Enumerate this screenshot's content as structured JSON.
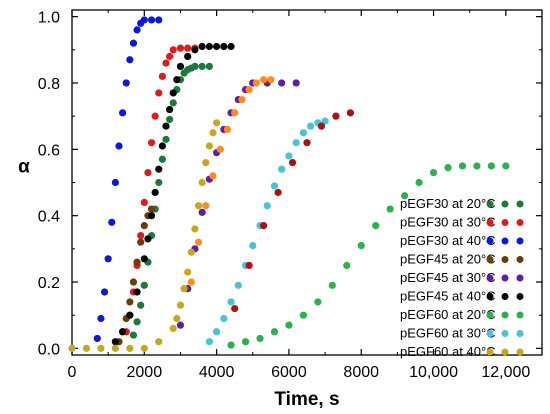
{
  "chart_data": {
    "type": "scatter",
    "xlabel": "Time, s",
    "ylabel": "α",
    "xlim": [
      0,
      13000
    ],
    "ylim": [
      -0.02,
      1.02
    ],
    "x_ticks": [
      0,
      2000,
      4000,
      6000,
      8000,
      10000,
      12000
    ],
    "x_tick_labels": [
      "0",
      "2000",
      "4000",
      "6000",
      "8000",
      "10,000",
      "12,000"
    ],
    "y_ticks": [
      0.0,
      0.2,
      0.4,
      0.6,
      0.8,
      1.0
    ],
    "y_tick_labels": [
      "0.0",
      "0.2",
      "0.4",
      "0.6",
      "0.8",
      "1.0"
    ],
    "grid": false,
    "legend_position": "bottom-right",
    "series": [
      {
        "name": "pEGF30 at 20°C",
        "color": "#1a7a3c",
        "x": [
          1700,
          1800,
          1900,
          2000,
          2100,
          2200,
          2300,
          2400,
          2500,
          2600,
          2700,
          2800,
          2900,
          3000,
          3100,
          3200,
          3300,
          3400,
          3600,
          3800
        ],
        "y": [
          0.04,
          0.08,
          0.13,
          0.19,
          0.26,
          0.34,
          0.42,
          0.5,
          0.57,
          0.63,
          0.69,
          0.74,
          0.78,
          0.81,
          0.83,
          0.84,
          0.845,
          0.85,
          0.85,
          0.85
        ]
      },
      {
        "name": "pEGF30 at 30°C",
        "color": "#e31a1c",
        "x": [
          1500,
          1600,
          1700,
          1800,
          1900,
          2000,
          2100,
          2200,
          2300,
          2400,
          2500,
          2600,
          2700,
          2800,
          3000,
          3200,
          3400
        ],
        "y": [
          0.05,
          0.1,
          0.17,
          0.25,
          0.34,
          0.44,
          0.53,
          0.62,
          0.7,
          0.77,
          0.82,
          0.86,
          0.88,
          0.9,
          0.905,
          0.905,
          0.905
        ]
      },
      {
        "name": "pEGF30 at 40°C",
        "color": "#0a18e0",
        "x": [
          700,
          800,
          900,
          1000,
          1100,
          1200,
          1300,
          1400,
          1500,
          1600,
          1700,
          1800,
          1900,
          2000,
          2200,
          2400
        ],
        "y": [
          0.03,
          0.09,
          0.17,
          0.27,
          0.38,
          0.5,
          0.61,
          0.71,
          0.8,
          0.87,
          0.92,
          0.96,
          0.98,
          0.99,
          0.99,
          0.99
        ]
      },
      {
        "name": "pEGF45 at 20°C",
        "color": "#6b3c08",
        "x": [
          1300,
          1400,
          1500,
          1600,
          1700,
          1800,
          1900,
          2000,
          2100,
          2200
        ],
        "y": [
          0.02,
          0.05,
          0.09,
          0.14,
          0.2,
          0.26,
          0.32,
          0.37,
          0.4,
          0.42
        ]
      },
      {
        "name": "pEGF45 at 30°C",
        "color": "#5b1fa8",
        "x": [
          3000,
          3200,
          3400,
          3600,
          3800,
          4000,
          4200,
          4400,
          4600,
          4800,
          5000,
          5400,
          5800,
          6200
        ],
        "y": [
          0.07,
          0.18,
          0.3,
          0.41,
          0.51,
          0.59,
          0.66,
          0.71,
          0.75,
          0.78,
          0.8,
          0.8,
          0.8,
          0.8
        ]
      },
      {
        "name": "pEGF45 at 40°C",
        "color": "#050505",
        "x": [
          1200,
          1400,
          1600,
          1800,
          2000,
          2100,
          2200,
          2300,
          2400,
          2500,
          2600,
          2700,
          2800,
          2900,
          3000,
          3200,
          3400,
          3600,
          3800,
          4000,
          4200,
          4400
        ],
        "y": [
          0.02,
          0.05,
          0.1,
          0.17,
          0.27,
          0.33,
          0.4,
          0.47,
          0.54,
          0.61,
          0.67,
          0.72,
          0.77,
          0.81,
          0.85,
          0.88,
          0.9,
          0.91,
          0.91,
          0.91,
          0.91,
          0.91
        ]
      },
      {
        "name": "pEGF60 at 20°C",
        "color": "#2bb24c",
        "x": [
          4400,
          4800,
          5200,
          5600,
          6000,
          6400,
          6800,
          7200,
          7600,
          8000,
          8400,
          8800,
          9200,
          9600,
          10000,
          10400,
          10800,
          11200,
          11600,
          12000
        ],
        "y": [
          0.01,
          0.02,
          0.03,
          0.05,
          0.07,
          0.1,
          0.14,
          0.19,
          0.25,
          0.31,
          0.37,
          0.42,
          0.46,
          0.5,
          0.53,
          0.545,
          0.55,
          0.55,
          0.55,
          0.55
        ]
      },
      {
        "name": "pEGF60 at 30°C",
        "color": "#45c5d6",
        "x": [
          3800,
          4000,
          4200,
          4400,
          4600,
          4800,
          5000,
          5200,
          5400,
          5600,
          5800,
          6000,
          6200,
          6400,
          6600,
          6800,
          7000
        ],
        "y": [
          0.02,
          0.05,
          0.09,
          0.14,
          0.19,
          0.25,
          0.31,
          0.37,
          0.43,
          0.49,
          0.54,
          0.58,
          0.62,
          0.65,
          0.67,
          0.68,
          0.685
        ]
      },
      {
        "name": "pEGF60 at 40°C",
        "color": "#c8a81a",
        "x": [
          0,
          400,
          800,
          1200,
          1600,
          2000,
          2400,
          2800,
          2900,
          3000,
          3100,
          3200,
          3300,
          3400,
          3500,
          3600,
          3700,
          3800,
          3900,
          4000
        ],
        "y": [
          0.0,
          0.0,
          0.0,
          0.0,
          0.0,
          0.0,
          0.02,
          0.06,
          0.09,
          0.13,
          0.18,
          0.23,
          0.29,
          0.36,
          0.43,
          0.5,
          0.56,
          0.61,
          0.65,
          0.68
        ]
      },
      {
        "name": "orange overlay",
        "color": "#ff8c1a",
        "legend": false,
        "x": [
          3300,
          3500,
          3700,
          3900,
          4100,
          4300,
          4500,
          4700,
          4900,
          5100,
          5300,
          5500
        ],
        "y": [
          0.2,
          0.32,
          0.43,
          0.52,
          0.6,
          0.66,
          0.71,
          0.75,
          0.78,
          0.8,
          0.81,
          0.81
        ]
      },
      {
        "name": "dark red overlay",
        "color": "#b01010",
        "legend": false,
        "x": [
          4500,
          4900,
          5300,
          5700,
          6100,
          6500,
          6900,
          7300,
          7700
        ],
        "y": [
          0.12,
          0.25,
          0.37,
          0.47,
          0.56,
          0.62,
          0.67,
          0.7,
          0.71
        ]
      }
    ]
  }
}
